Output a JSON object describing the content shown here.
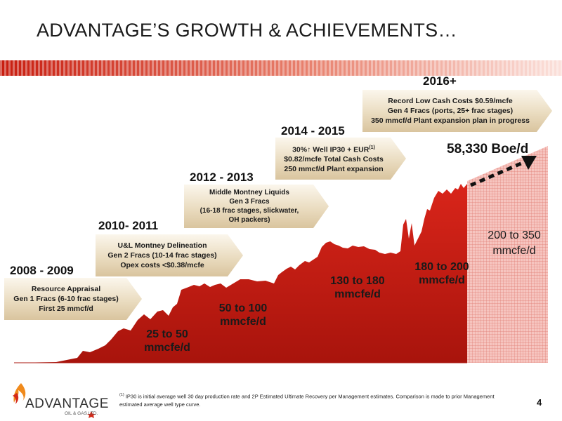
{
  "title": "ADVANTAGE’S GROWTH & ACHIEVEMENTS…",
  "colors": {
    "accent": "#d42a1a",
    "stripe_left": "#c81e10",
    "callout": "#e6d6b8",
    "projection": "#f4b8b3"
  },
  "periods": [
    {
      "label": "2008 - 2009",
      "lines": [
        "Resource Appraisal",
        "Gen 1 Fracs (6-10 frac stages)",
        "First 25 mmcf/d"
      ]
    },
    {
      "label": "2010- 2011",
      "lines": [
        "U&L Montney Delineation",
        "Gen 2 Fracs (10-14 frac stages)",
        "Opex costs <$0.38/mcfe"
      ]
    },
    {
      "label": "2012 - 2013",
      "lines": [
        "Middle Montney Liquids",
        "Gen 3 Fracs",
        "(16-18 frac stages, slickwater,",
        "OH packers)"
      ]
    },
    {
      "label": "2014 - 2015",
      "lines": [
        "30%↑ Well IP30 + EUR",
        "$0.82/mcfe Total Cash Costs",
        "250 mmcf/d Plant expansion"
      ],
      "superscript": "(1)"
    },
    {
      "label": "2016+",
      "lines": [
        "Record Low Cash Costs $0.59/mcfe",
        "Gen 4 Fracs (ports, 25+ frac stages)",
        "350 mmcf/d Plant expansion plan in progress"
      ]
    }
  ],
  "ranges": [
    {
      "line1": "25 to 50",
      "line2": "mmcfe/d"
    },
    {
      "line1": "50 to 100",
      "line2": "mmcfe/d"
    },
    {
      "line1": "130 to 180",
      "line2": "mmcfe/d"
    },
    {
      "line1": "180 to 200",
      "line2": "mmcfe/d"
    }
  ],
  "projection": {
    "line1": "200 to 350",
    "line2": "mmcfe/d"
  },
  "headline_value": "58,330 Boe/d",
  "footnote": {
    "marker": "(1)",
    "text": "IP30 is initial average well 30 day production rate and 2P Estimated Ultimate Recovery per Management estimates.  Comparison is made to prior Management estimated average well type curve."
  },
  "logo": {
    "name": "ADVANTAGE",
    "subtitle": "OIL & GAS LTD."
  },
  "page_number": "4"
}
